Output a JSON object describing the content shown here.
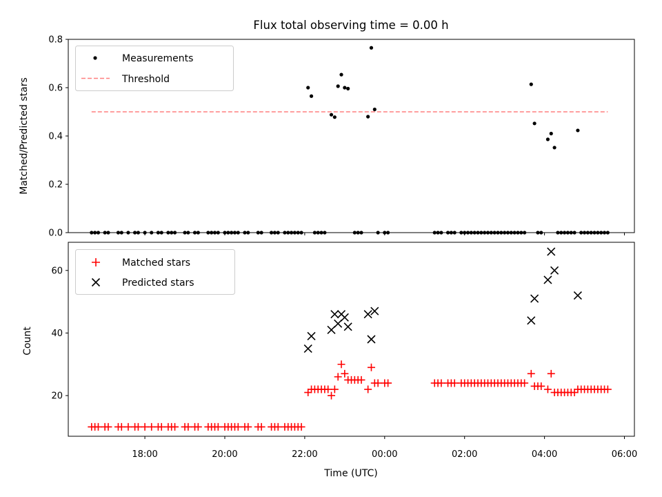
{
  "chart_data": [
    {
      "type": "scatter",
      "title": "Flux total observing time = 0.00 h",
      "xlabel": "",
      "ylabel": "Matched/Predicted stars",
      "ylim": [
        0,
        0.8
      ],
      "yticks": [
        "0.0",
        "0.2",
        "0.4",
        "0.6",
        "0.8"
      ],
      "grid": false,
      "legend": "top-left",
      "series": [
        {
          "name": "Measurements",
          "marker": "dot",
          "color": "#000000",
          "points": [
            [
              "16:40",
              0
            ],
            [
              "16:45",
              0
            ],
            [
              "16:50",
              0
            ],
            [
              "17:00",
              0
            ],
            [
              "17:05",
              0
            ],
            [
              "17:20",
              0
            ],
            [
              "17:25",
              0
            ],
            [
              "17:35",
              0
            ],
            [
              "17:45",
              0
            ],
            [
              "17:50",
              0
            ],
            [
              "18:00",
              0
            ],
            [
              "18:10",
              0
            ],
            [
              "18:20",
              0
            ],
            [
              "18:25",
              0
            ],
            [
              "18:35",
              0
            ],
            [
              "18:40",
              0
            ],
            [
              "18:45",
              0
            ],
            [
              "19:00",
              0
            ],
            [
              "19:05",
              0
            ],
            [
              "19:15",
              0
            ],
            [
              "19:20",
              0
            ],
            [
              "19:35",
              0
            ],
            [
              "19:40",
              0
            ],
            [
              "19:45",
              0
            ],
            [
              "19:50",
              0
            ],
            [
              "20:00",
              0
            ],
            [
              "20:05",
              0
            ],
            [
              "20:10",
              0
            ],
            [
              "20:15",
              0
            ],
            [
              "20:20",
              0
            ],
            [
              "20:30",
              0
            ],
            [
              "20:35",
              0
            ],
            [
              "20:50",
              0
            ],
            [
              "20:55",
              0
            ],
            [
              "21:10",
              0
            ],
            [
              "21:15",
              0
            ],
            [
              "21:20",
              0
            ],
            [
              "21:30",
              0
            ],
            [
              "21:35",
              0
            ],
            [
              "21:40",
              0
            ],
            [
              "21:45",
              0
            ],
            [
              "21:50",
              0
            ],
            [
              "21:55",
              0
            ],
            [
              "22:05",
              0.6
            ],
            [
              "22:10",
              0.565
            ],
            [
              "22:15",
              0
            ],
            [
              "22:20",
              0
            ],
            [
              "22:25",
              0
            ],
            [
              "22:30",
              0
            ],
            [
              "22:40",
              0.488
            ],
            [
              "22:45",
              0.478
            ],
            [
              "22:50",
              0.606
            ],
            [
              "22:55",
              0.654
            ],
            [
              "23:00",
              0.6
            ],
            [
              "23:05",
              0.596
            ],
            [
              "23:15",
              0
            ],
            [
              "23:20",
              0
            ],
            [
              "23:25",
              0
            ],
            [
              "23:35",
              0.48
            ],
            [
              "23:40",
              0.765
            ],
            [
              "23:45",
              0.51
            ],
            [
              "23:50",
              0
            ],
            [
              "24:00",
              0
            ],
            [
              "24:05",
              0
            ],
            [
              "25:15",
              0
            ],
            [
              "25:20",
              0
            ],
            [
              "25:25",
              0
            ],
            [
              "25:35",
              0
            ],
            [
              "25:40",
              0
            ],
            [
              "25:45",
              0
            ],
            [
              "25:55",
              0
            ],
            [
              "26:00",
              0
            ],
            [
              "26:05",
              0
            ],
            [
              "26:10",
              0
            ],
            [
              "26:15",
              0
            ],
            [
              "26:20",
              0
            ],
            [
              "26:25",
              0
            ],
            [
              "26:30",
              0
            ],
            [
              "26:35",
              0
            ],
            [
              "26:40",
              0
            ],
            [
              "26:45",
              0
            ],
            [
              "26:50",
              0
            ],
            [
              "26:55",
              0
            ],
            [
              "27:00",
              0
            ],
            [
              "27:05",
              0
            ],
            [
              "27:10",
              0
            ],
            [
              "27:15",
              0
            ],
            [
              "27:20",
              0
            ],
            [
              "27:25",
              0
            ],
            [
              "27:30",
              0
            ],
            [
              "27:40",
              0.614
            ],
            [
              "27:45",
              0.452
            ],
            [
              "27:50",
              0
            ],
            [
              "27:55",
              0
            ],
            [
              "28:05",
              0.386
            ],
            [
              "28:10",
              0.41
            ],
            [
              "28:15",
              0.352
            ],
            [
              "28:20",
              0
            ],
            [
              "28:25",
              0
            ],
            [
              "28:30",
              0
            ],
            [
              "28:35",
              0
            ],
            [
              "28:40",
              0
            ],
            [
              "28:45",
              0
            ],
            [
              "28:50",
              0.423
            ],
            [
              "28:55",
              0
            ],
            [
              "29:00",
              0
            ],
            [
              "29:05",
              0
            ],
            [
              "29:10",
              0
            ],
            [
              "29:15",
              0
            ],
            [
              "29:20",
              0
            ],
            [
              "29:25",
              0
            ],
            [
              "29:30",
              0
            ],
            [
              "29:35",
              0
            ]
          ]
        },
        {
          "name": "Threshold",
          "type": "line",
          "style": "dashed",
          "color": "#ff7f7f",
          "x": [
            "16:40",
            "29:35"
          ],
          "y": [
            0.5,
            0.5
          ]
        }
      ]
    },
    {
      "type": "scatter",
      "title": "",
      "xlabel": "Time (UTC)",
      "ylabel": "Count",
      "xlim": [
        "16:05",
        "30:15"
      ],
      "ylim": [
        7,
        69
      ],
      "xticks": [
        "18:00",
        "20:00",
        "22:00",
        "00:00",
        "02:00",
        "04:00",
        "06:00"
      ],
      "yticks": [
        "20",
        "40",
        "60"
      ],
      "grid": false,
      "legend": "top-left",
      "series": [
        {
          "name": "Matched stars",
          "marker": "plus",
          "color": "#ff0000",
          "points": [
            [
              "16:40",
              10
            ],
            [
              "16:45",
              10
            ],
            [
              "16:50",
              10
            ],
            [
              "17:00",
              10
            ],
            [
              "17:05",
              10
            ],
            [
              "17:20",
              10
            ],
            [
              "17:25",
              10
            ],
            [
              "17:35",
              10
            ],
            [
              "17:45",
              10
            ],
            [
              "17:50",
              10
            ],
            [
              "18:00",
              10
            ],
            [
              "18:10",
              10
            ],
            [
              "18:20",
              10
            ],
            [
              "18:25",
              10
            ],
            [
              "18:35",
              10
            ],
            [
              "18:40",
              10
            ],
            [
              "18:45",
              10
            ],
            [
              "19:00",
              10
            ],
            [
              "19:05",
              10
            ],
            [
              "19:15",
              10
            ],
            [
              "19:20",
              10
            ],
            [
              "19:35",
              10
            ],
            [
              "19:40",
              10
            ],
            [
              "19:45",
              10
            ],
            [
              "19:50",
              10
            ],
            [
              "20:00",
              10
            ],
            [
              "20:05",
              10
            ],
            [
              "20:10",
              10
            ],
            [
              "20:15",
              10
            ],
            [
              "20:20",
              10
            ],
            [
              "20:30",
              10
            ],
            [
              "20:35",
              10
            ],
            [
              "20:50",
              10
            ],
            [
              "20:55",
              10
            ],
            [
              "21:10",
              10
            ],
            [
              "21:15",
              10
            ],
            [
              "21:20",
              10
            ],
            [
              "21:30",
              10
            ],
            [
              "21:35",
              10
            ],
            [
              "21:40",
              10
            ],
            [
              "21:45",
              10
            ],
            [
              "21:50",
              10
            ],
            [
              "21:55",
              10
            ],
            [
              "22:05",
              21
            ],
            [
              "22:10",
              22
            ],
            [
              "22:15",
              22
            ],
            [
              "22:20",
              22
            ],
            [
              "22:25",
              22
            ],
            [
              "22:30",
              22
            ],
            [
              "22:35",
              22
            ],
            [
              "22:40",
              20
            ],
            [
              "22:45",
              22
            ],
            [
              "22:50",
              26
            ],
            [
              "22:55",
              30
            ],
            [
              "23:00",
              27
            ],
            [
              "23:05",
              25
            ],
            [
              "23:10",
              25
            ],
            [
              "23:15",
              25
            ],
            [
              "23:20",
              25
            ],
            [
              "23:25",
              25
            ],
            [
              "23:35",
              22
            ],
            [
              "23:40",
              29
            ],
            [
              "23:45",
              24
            ],
            [
              "23:50",
              24
            ],
            [
              "24:00",
              24
            ],
            [
              "24:05",
              24
            ],
            [
              "25:15",
              24
            ],
            [
              "25:20",
              24
            ],
            [
              "25:25",
              24
            ],
            [
              "25:35",
              24
            ],
            [
              "25:40",
              24
            ],
            [
              "25:45",
              24
            ],
            [
              "25:55",
              24
            ],
            [
              "26:00",
              24
            ],
            [
              "26:05",
              24
            ],
            [
              "26:10",
              24
            ],
            [
              "26:15",
              24
            ],
            [
              "26:20",
              24
            ],
            [
              "26:25",
              24
            ],
            [
              "26:30",
              24
            ],
            [
              "26:35",
              24
            ],
            [
              "26:40",
              24
            ],
            [
              "26:45",
              24
            ],
            [
              "26:50",
              24
            ],
            [
              "26:55",
              24
            ],
            [
              "27:00",
              24
            ],
            [
              "27:05",
              24
            ],
            [
              "27:10",
              24
            ],
            [
              "27:15",
              24
            ],
            [
              "27:20",
              24
            ],
            [
              "27:25",
              24
            ],
            [
              "27:30",
              24
            ],
            [
              "27:40",
              27
            ],
            [
              "27:45",
              23
            ],
            [
              "27:50",
              23
            ],
            [
              "27:55",
              23
            ],
            [
              "28:05",
              22
            ],
            [
              "28:10",
              27
            ],
            [
              "28:15",
              21
            ],
            [
              "28:20",
              21
            ],
            [
              "28:25",
              21
            ],
            [
              "28:30",
              21
            ],
            [
              "28:35",
              21
            ],
            [
              "28:40",
              21
            ],
            [
              "28:45",
              21
            ],
            [
              "28:50",
              22
            ],
            [
              "28:55",
              22
            ],
            [
              "29:00",
              22
            ],
            [
              "29:05",
              22
            ],
            [
              "29:10",
              22
            ],
            [
              "29:15",
              22
            ],
            [
              "29:20",
              22
            ],
            [
              "29:25",
              22
            ],
            [
              "29:30",
              22
            ],
            [
              "29:35",
              22
            ]
          ]
        },
        {
          "name": "Predicted stars",
          "marker": "x",
          "color": "#000000",
          "points": [
            [
              "22:05",
              35
            ],
            [
              "22:10",
              39
            ],
            [
              "22:40",
              41
            ],
            [
              "22:45",
              46
            ],
            [
              "22:50",
              43
            ],
            [
              "22:55",
              46
            ],
            [
              "23:00",
              45
            ],
            [
              "23:05",
              42
            ],
            [
              "23:35",
              46
            ],
            [
              "23:40",
              38
            ],
            [
              "23:45",
              47
            ],
            [
              "27:40",
              44
            ],
            [
              "27:45",
              51
            ],
            [
              "28:05",
              57
            ],
            [
              "28:10",
              66
            ],
            [
              "28:15",
              60
            ],
            [
              "28:50",
              52
            ]
          ]
        }
      ]
    }
  ]
}
